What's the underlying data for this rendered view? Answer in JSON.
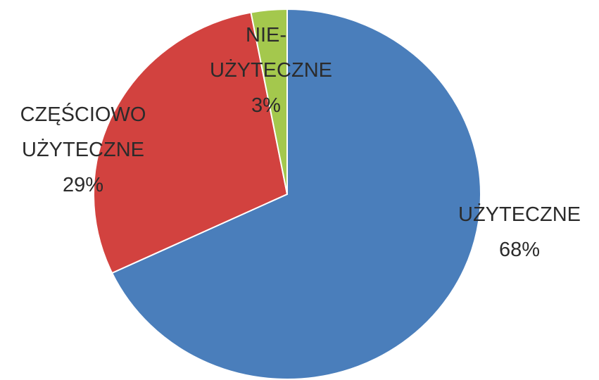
{
  "chart_data": {
    "type": "pie",
    "categories": [
      "UŻYTECZNE",
      "CZĘŚCIOWO UŻYTECZNE",
      "NIE-UŻYTECZNE"
    ],
    "values": [
      68,
      29,
      3
    ],
    "value_labels": [
      "68%",
      "29%",
      "3%"
    ],
    "colors": [
      "#4a7ebb",
      "#d2423f",
      "#a4c84d"
    ]
  }
}
